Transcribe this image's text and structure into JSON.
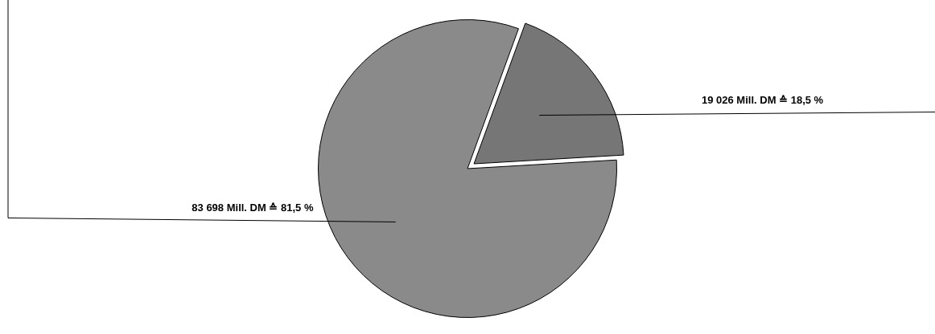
{
  "chart_data": {
    "type": "pie",
    "categories": [
      null,
      null
    ],
    "values": [
      83698,
      19026
    ],
    "value_labels": [
      "83 698 Mill. DM ≙ 81,5 %",
      "19 026 Mill. DM ≙ 18,5 %"
    ],
    "colors": [
      "#8a8a8a",
      "#767676"
    ],
    "legend": false
  }
}
